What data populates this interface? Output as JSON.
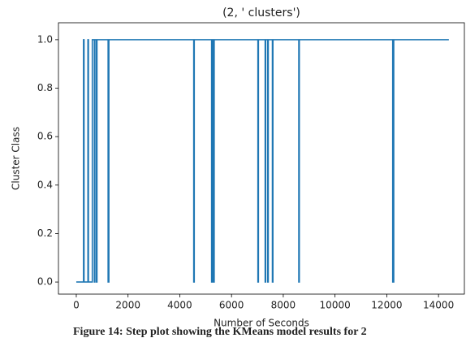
{
  "chart_data": {
    "type": "line",
    "title": "(2, ' clusters')",
    "x_label": "Number of Seconds",
    "y_label": "Cluster Class",
    "caption": "Figure 14: Step plot showing the KMeans model results for 2",
    "x": [
      0,
      280,
      280,
      300,
      300,
      450,
      450,
      470,
      470,
      620,
      620,
      700,
      700,
      720,
      720,
      780,
      780,
      800,
      800,
      1230,
      1230,
      1260,
      1260,
      4540,
      4540,
      4560,
      4560,
      5230,
      5230,
      5260,
      5260,
      5300,
      5300,
      5330,
      5330,
      7020,
      7020,
      7040,
      7040,
      7300,
      7300,
      7320,
      7320,
      7400,
      7400,
      7420,
      7420,
      7580,
      7580,
      7600,
      7600,
      8600,
      8600,
      8620,
      8620,
      12230,
      12230,
      12270,
      12270,
      14400
    ],
    "series": [
      {
        "color": "#1f77b4",
        "values": [
          0,
          0,
          1,
          1,
          0,
          0,
          1,
          1,
          0,
          0,
          1,
          1,
          0,
          0,
          1,
          1,
          0,
          0,
          1,
          1,
          0,
          0,
          1,
          1,
          0,
          0,
          1,
          1,
          0,
          0,
          1,
          1,
          0,
          0,
          1,
          1,
          0,
          0,
          1,
          1,
          0,
          0,
          1,
          1,
          0,
          0,
          1,
          1,
          0,
          0,
          1,
          1,
          0,
          0,
          1,
          1,
          0,
          0,
          1,
          1
        ]
      }
    ],
    "xlim": [
      -689,
      15000
    ],
    "ylim": [
      -0.05,
      1.07
    ],
    "xticks": [
      0,
      2000,
      4000,
      6000,
      8000,
      10000,
      12000,
      14000
    ],
    "yticks": [
      {
        "value": 0,
        "label": "0.0"
      },
      {
        "value": 0.2,
        "label": "0.2"
      },
      {
        "value": 0.4,
        "label": "0.4"
      },
      {
        "value": 0.6,
        "label": "0.6"
      },
      {
        "value": 0.8,
        "label": "0.8"
      },
      {
        "value": 1,
        "label": "1.0"
      }
    ],
    "grid": false
  }
}
